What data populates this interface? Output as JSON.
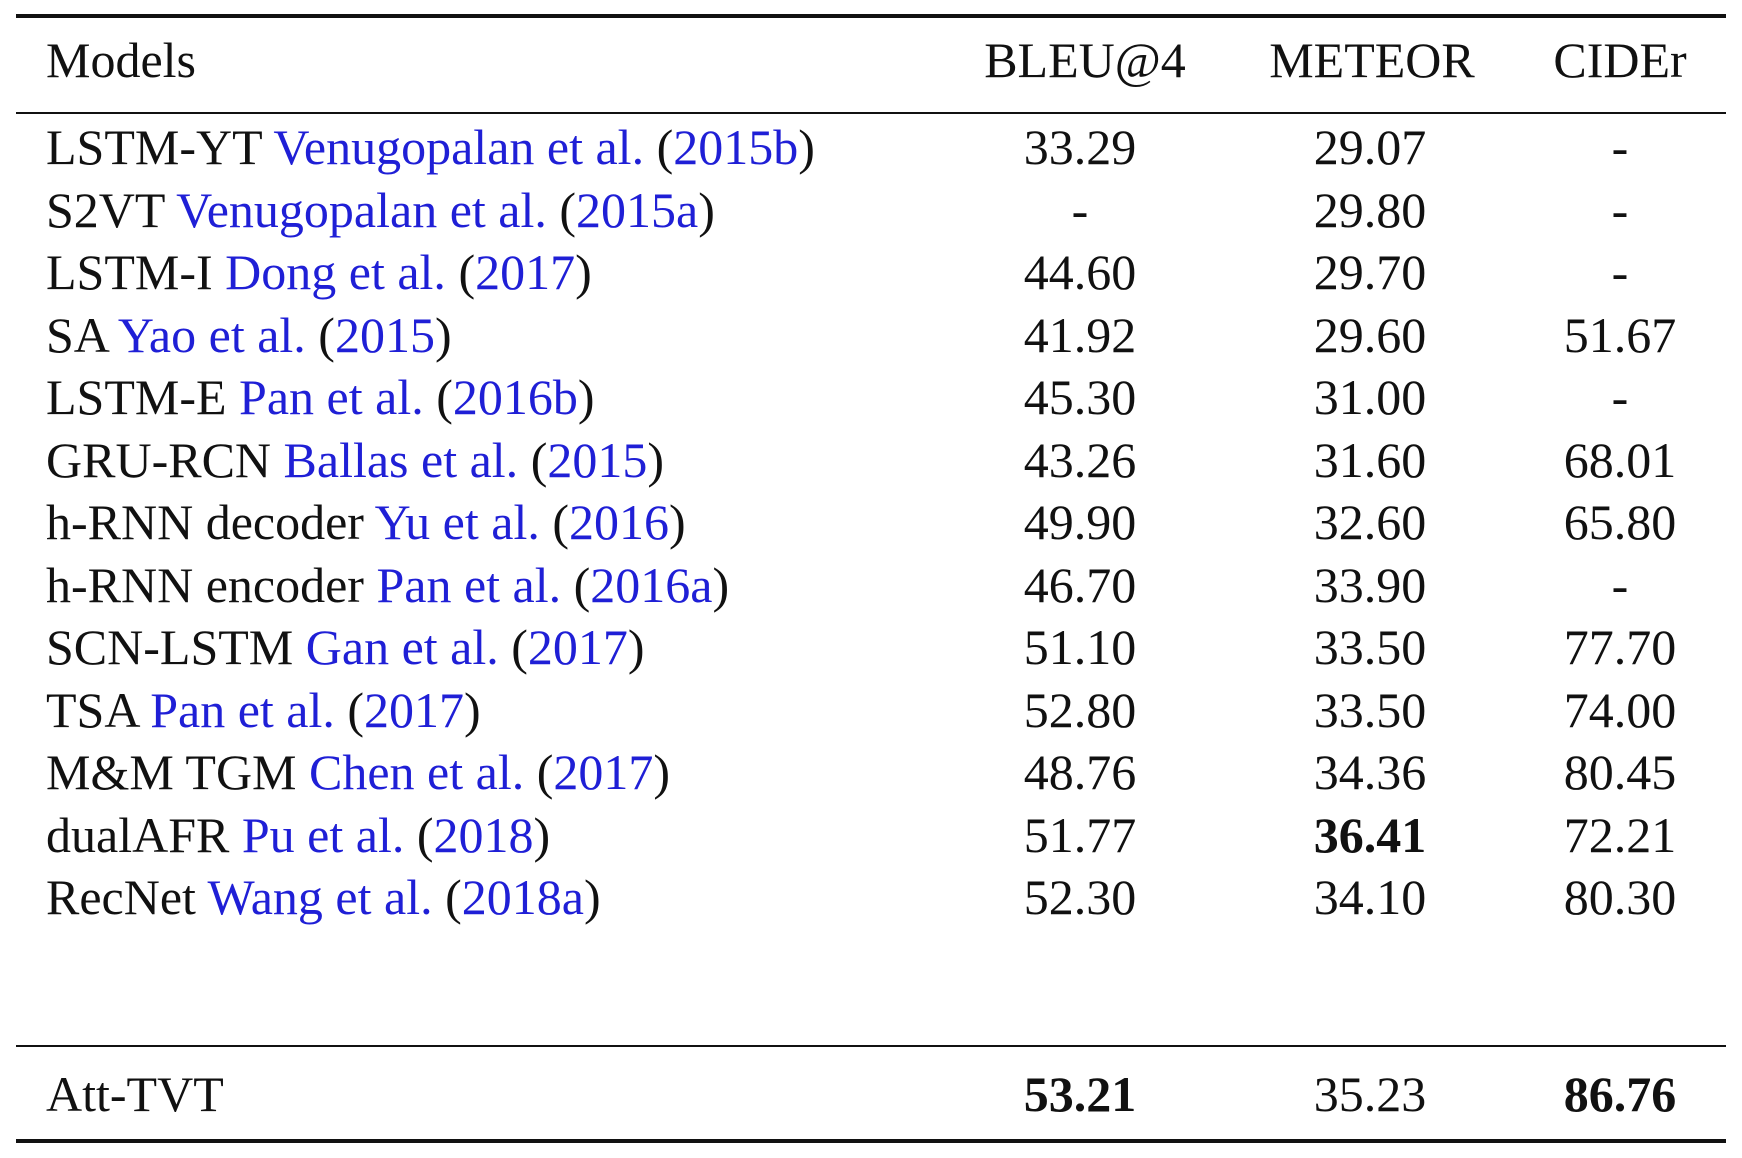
{
  "table": {
    "headers": [
      "Models",
      "BLEU@4",
      "METEOR",
      "CIDEr"
    ],
    "rows": [
      {
        "model": "LSTM-YT",
        "authors": "Venugopalan et al.",
        "year": "2015b",
        "bleu": "33.29",
        "meteor": "29.07",
        "cider": "-"
      },
      {
        "model": "S2VT",
        "authors": "Venugopalan et al.",
        "year": "2015a",
        "bleu": "-",
        "meteor": "29.80",
        "cider": "-"
      },
      {
        "model": "LSTM-I",
        "authors": "Dong et al.",
        "year": "2017",
        "bleu": "44.60",
        "meteor": "29.70",
        "cider": "-"
      },
      {
        "model": "SA",
        "authors": "Yao et al.",
        "year": "2015",
        "bleu": "41.92",
        "meteor": "29.60",
        "cider": "51.67"
      },
      {
        "model": "LSTM-E",
        "authors": "Pan et al.",
        "year": "2016b",
        "bleu": "45.30",
        "meteor": "31.00",
        "cider": "-"
      },
      {
        "model": "GRU-RCN",
        "authors": "Ballas et al.",
        "year": "2015",
        "bleu": "43.26",
        "meteor": "31.60",
        "cider": "68.01"
      },
      {
        "model": "h-RNN decoder",
        "authors": "Yu et al.",
        "year": "2016",
        "bleu": "49.90",
        "meteor": "32.60",
        "cider": "65.80"
      },
      {
        "model": "h-RNN encoder",
        "authors": "Pan et al.",
        "year": "2016a",
        "bleu": "46.70",
        "meteor": "33.90",
        "cider": "-"
      },
      {
        "model": "SCN-LSTM",
        "authors": "Gan et al.",
        "year": "2017",
        "bleu": "51.10",
        "meteor": "33.50",
        "cider": "77.70"
      },
      {
        "model": "TSA",
        "authors": "Pan et al.",
        "year": "2017",
        "bleu": "52.80",
        "meteor": "33.50",
        "cider": "74.00"
      },
      {
        "model": "M&M TGM",
        "authors": "Chen et al.",
        "year": "2017",
        "bleu": "48.76",
        "meteor": "34.36",
        "cider": "80.45"
      },
      {
        "model": "dualAFR",
        "authors": "Pu et al.",
        "year": "2018",
        "bleu": "51.77",
        "meteor": "36.41",
        "cider": "72.21",
        "bold_meteor": true
      },
      {
        "model": "RecNet",
        "authors": "Wang et al.",
        "year": "2018a",
        "bleu": "52.30",
        "meteor": "34.10",
        "cider": "80.30"
      }
    ],
    "final_row": {
      "model": "Att-TVT",
      "bleu": "53.21",
      "meteor": "35.23",
      "cider": "86.76"
    },
    "colors": {
      "citation": "#1f1fd6",
      "text": "#111111"
    }
  }
}
